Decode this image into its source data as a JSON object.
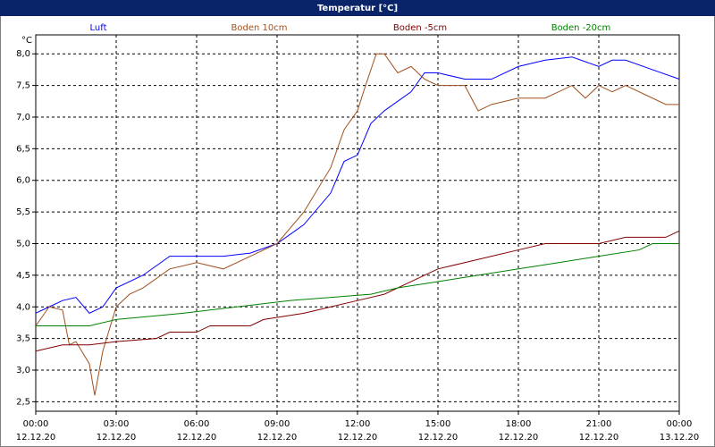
{
  "chart_data": {
    "type": "line",
    "title": "Temperatur [°C]",
    "y_label": "°C",
    "xlim": [
      0,
      24
    ],
    "ylim": [
      2.35,
      8.3
    ],
    "grid": true,
    "xticks": [
      {
        "value": 0,
        "label": "00:00"
      },
      {
        "value": 3,
        "label": "03:00"
      },
      {
        "value": 6,
        "label": "06:00"
      },
      {
        "value": 9,
        "label": "09:00"
      },
      {
        "value": 12,
        "label": "12:00"
      },
      {
        "value": 15,
        "label": "15:00"
      },
      {
        "value": 18,
        "label": "18:00"
      },
      {
        "value": 21,
        "label": "21:00"
      },
      {
        "value": 24,
        "label": "00:00"
      }
    ],
    "xtick_dates": [
      "12.12.20",
      "12.12.20",
      "12.12.20",
      "12.12.20",
      "12.12.20",
      "12.12.20",
      "12.12.20",
      "12.12.20",
      "13.12.20"
    ],
    "yticks": [
      {
        "value": 2.5,
        "label": "2,5"
      },
      {
        "value": 3,
        "label": "3,0"
      },
      {
        "value": 3.5,
        "label": "3,5"
      },
      {
        "value": 4,
        "label": "4,0"
      },
      {
        "value": 4.5,
        "label": "4,5"
      },
      {
        "value": 5,
        "label": "5,0"
      },
      {
        "value": 5.5,
        "label": "5,5"
      },
      {
        "value": 6,
        "label": "6,0"
      },
      {
        "value": 6.5,
        "label": "6,5"
      },
      {
        "value": 7,
        "label": "7,0"
      },
      {
        "value": 7.5,
        "label": "7,5"
      },
      {
        "value": 8,
        "label": "8,0"
      }
    ],
    "series": [
      {
        "name": "Luft",
        "color": "#0000ff",
        "x": [
          0,
          0.5,
          1,
          1.5,
          2,
          2.5,
          3,
          4,
          5,
          6,
          7,
          8,
          9,
          10,
          11,
          11.5,
          12,
          12.5,
          13,
          14,
          14.5,
          15,
          16,
          17,
          18,
          19,
          20,
          21,
          21.5,
          22,
          23,
          24
        ],
        "values": [
          3.9,
          4.0,
          4.1,
          4.15,
          3.9,
          4.0,
          4.3,
          4.5,
          4.8,
          4.8,
          4.8,
          4.85,
          5.0,
          5.3,
          5.8,
          6.3,
          6.4,
          6.9,
          7.1,
          7.4,
          7.7,
          7.7,
          7.6,
          7.6,
          7.8,
          7.9,
          7.95,
          7.8,
          7.9,
          7.9,
          7.75,
          7.6
        ]
      },
      {
        "name": "Boden 10cm",
        "color": "#a0501e",
        "x": [
          0,
          0.5,
          1,
          1.25,
          1.5,
          2,
          2.2,
          2.5,
          3,
          3.5,
          4,
          5,
          6,
          7,
          8,
          9,
          10,
          11,
          11.5,
          12,
          12.3,
          12.7,
          13,
          13.5,
          14,
          14.5,
          15,
          16,
          16.5,
          17,
          18,
          19,
          20,
          20.5,
          21,
          21.5,
          22,
          23,
          23.5,
          24
        ],
        "values": [
          3.7,
          4.0,
          3.95,
          3.4,
          3.45,
          3.1,
          2.6,
          3.3,
          4.0,
          4.2,
          4.3,
          4.6,
          4.7,
          4.6,
          4.8,
          5.0,
          5.5,
          6.2,
          6.8,
          7.1,
          7.5,
          8.0,
          8.0,
          7.7,
          7.8,
          7.6,
          7.5,
          7.5,
          7.1,
          7.2,
          7.3,
          7.3,
          7.5,
          7.3,
          7.5,
          7.4,
          7.5,
          7.3,
          7.2,
          7.2
        ]
      },
      {
        "name": "Boden -5cm",
        "color": "#800000",
        "x": [
          0,
          1,
          2,
          3,
          4.5,
          5,
          6,
          6.5,
          8,
          8.5,
          10,
          11,
          12,
          13,
          14,
          15,
          16,
          17,
          18,
          19,
          21,
          22,
          23.5,
          24
        ],
        "values": [
          3.3,
          3.4,
          3.4,
          3.45,
          3.5,
          3.6,
          3.6,
          3.7,
          3.7,
          3.8,
          3.9,
          4.0,
          4.1,
          4.2,
          4.4,
          4.6,
          4.7,
          4.8,
          4.9,
          5.0,
          5.0,
          5.1,
          5.1,
          5.2
        ]
      },
      {
        "name": "Boden -20cm",
        "color": "#008000",
        "x": [
          0,
          2,
          3,
          5.5,
          7.5,
          9.5,
          12.5,
          13.5,
          15,
          16.5,
          18,
          19.5,
          21,
          22.5,
          23,
          24
        ],
        "values": [
          3.7,
          3.7,
          3.8,
          3.9,
          4.0,
          4.1,
          4.2,
          4.3,
          4.4,
          4.5,
          4.6,
          4.7,
          4.8,
          4.9,
          5.0,
          5.0
        ]
      }
    ]
  }
}
